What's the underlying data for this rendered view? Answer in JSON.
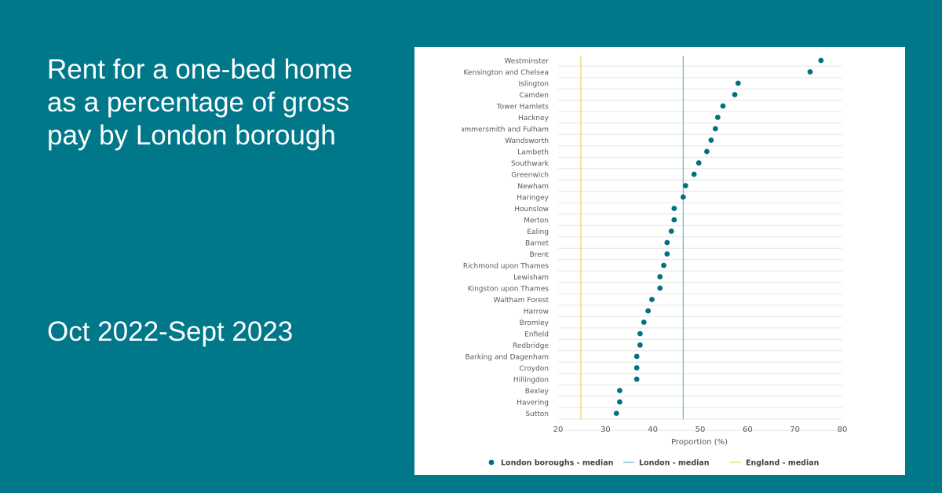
{
  "header": {
    "title": "Rent for a one-bed home as a percentage of gross pay by London borough",
    "period": "Oct 2022-Sept 2023"
  },
  "colors": {
    "background": "#00788a",
    "point": "#00717f",
    "london_line": "#4aa3c9",
    "england_line": "#e8c84a",
    "gridline": "#e6e6e6",
    "label": "#595959"
  },
  "chart_data": {
    "type": "scatter",
    "xlabel": "Proportion (%)",
    "ylabel": "",
    "xlim": [
      20,
      80
    ],
    "xticks": [
      20,
      30,
      40,
      50,
      60,
      70,
      80
    ],
    "grid": true,
    "legend_position": "bottom",
    "categories": [
      "Westminster",
      "Kensington and Chelsea",
      "Islington",
      "Camden",
      "Tower Hamlets",
      "Hackney",
      "Hammersmith and Fulham",
      "Wandsworth",
      "Lambeth",
      "Southwark",
      "Greenwich",
      "Newham",
      "Haringey",
      "Hounslow",
      "Merton",
      "Ealing",
      "Barnet",
      "Brent",
      "Richmond upon Thames",
      "Lewisham",
      "Kingston upon Thames",
      "Waltham Forest",
      "Harrow",
      "Bromley",
      "Enfield",
      "Redbridge",
      "Barking and Dagenham",
      "Croydon",
      "Hillingdon",
      "Bexley",
      "Havering",
      "Sutton"
    ],
    "series": [
      {
        "name": "London boroughs - median",
        "kind": "points",
        "values": [
          75.5,
          73.2,
          58.0,
          57.3,
          54.8,
          53.7,
          53.2,
          52.3,
          51.4,
          49.7,
          48.7,
          46.9,
          46.4,
          44.5,
          44.5,
          43.9,
          43.0,
          43.0,
          42.3,
          41.5,
          41.5,
          39.8,
          39.0,
          38.1,
          37.3,
          37.3,
          36.6,
          36.6,
          36.6,
          33.0,
          33.0,
          32.3
        ]
      },
      {
        "name": "London - median",
        "kind": "vline",
        "value": 46.4
      },
      {
        "name": "England - median",
        "kind": "vline",
        "value": 24.8
      }
    ]
  }
}
